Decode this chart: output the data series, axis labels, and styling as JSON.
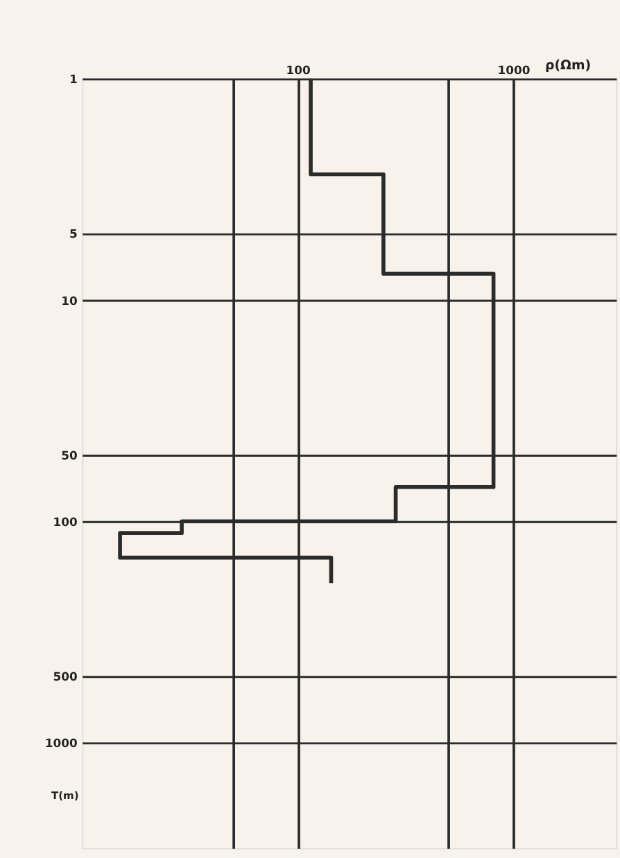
{
  "chart_data": {
    "type": "line",
    "xlabel": "ρ(Ωm)",
    "ylabel": "T(m)",
    "log": "xy",
    "xlim": [
      10,
      3000
    ],
    "ylim": [
      3000,
      1
    ],
    "xticks": [
      {
        "value": 50,
        "label": null
      },
      100,
      {
        "value": 500,
        "label": null
      },
      1000
    ],
    "yticks": [
      1,
      5,
      10,
      50,
      100,
      500,
      1000
    ],
    "grid": true,
    "marker": "none",
    "line_style": "solid",
    "series": [
      {
        "color": "#2b2b2b",
        "x": [
          115,
          115,
          250,
          250,
          810,
          810,
          285,
          285,
          29,
          29,
          15,
          15,
          143,
          143
        ],
        "values": [
          1,
          2.7,
          2.7,
          7.6,
          7.6,
          70,
          70,
          100,
          100,
          113,
          113,
          146,
          146,
          190
        ]
      }
    ]
  }
}
